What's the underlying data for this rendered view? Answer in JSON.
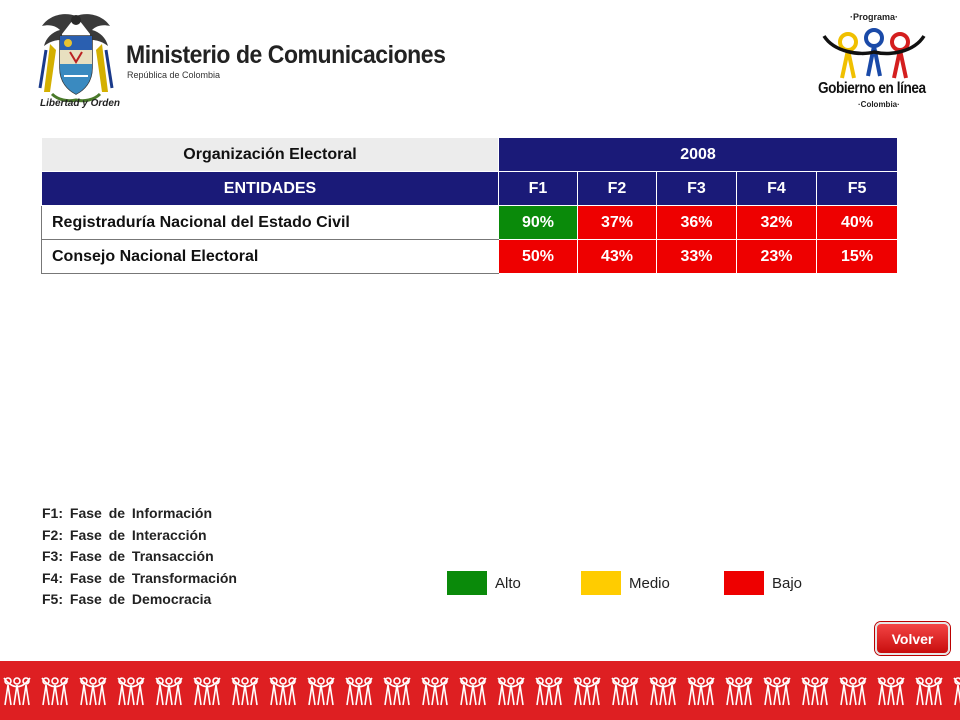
{
  "header": {
    "ministry_name": "Ministerio de Comunicaciones",
    "ministry_subtitle": "República de Colombia",
    "crest_motto": "Libertad y Orden",
    "program_top": "·Programa·",
    "program_name": "Gobierno en línea",
    "program_bottom": "·Colombia·"
  },
  "table": {
    "title": "Organización Electoral",
    "year": "2008",
    "entity_header": "ENTIDADES",
    "phase_headers": [
      "F1",
      "F2",
      "F3",
      "F4",
      "F5"
    ],
    "rows": [
      {
        "entity": "Registraduría Nacional del Estado Civil",
        "values": [
          "90%",
          "37%",
          "36%",
          "32%",
          "40%"
        ],
        "levels": [
          "alto",
          "bajo",
          "bajo",
          "bajo",
          "bajo"
        ]
      },
      {
        "entity": "Consejo Nacional Electoral",
        "values": [
          "50%",
          "43%",
          "33%",
          "23%",
          "15%"
        ],
        "levels": [
          "bajo",
          "bajo",
          "bajo",
          "bajo",
          "bajo"
        ]
      }
    ]
  },
  "phases": [
    "F1: Fase de Información",
    "F2: Fase de Interacción",
    "F3: Fase de Transacción",
    "F4: Fase de Transformación",
    "F5: Fase de Democracia"
  ],
  "legend": {
    "alto": "Alto",
    "medio": "Medio",
    "bajo": "Bajo"
  },
  "colors": {
    "alto": "#0a8a0a",
    "medio": "#ffcc00",
    "bajo": "#ee0000",
    "header_navy": "#1a1a78",
    "footer_red": "#de1f22"
  },
  "back_button_label": "Volver"
}
